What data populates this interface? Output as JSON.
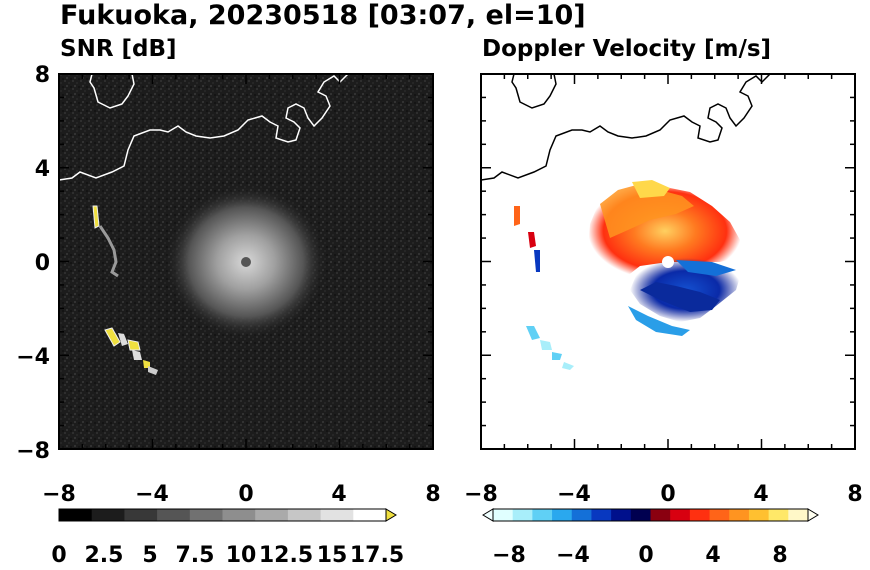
{
  "figure": {
    "title": "Fukuoka, 20230518 [03:07, el=10]"
  },
  "chart_data": [
    {
      "type": "heatmap",
      "title": "SNR [dB]",
      "xlabel": "",
      "ylabel": "",
      "xlim": [
        -8,
        8
      ],
      "ylim": [
        -8,
        8
      ],
      "xticks": [
        "−8",
        "−4",
        "0",
        "4",
        "8"
      ],
      "yticks": [
        "8",
        "4",
        "0",
        "−4",
        "−8"
      ],
      "colorbar": {
        "min": 0,
        "max": 18,
        "extend": "max",
        "labels": [
          "0",
          "2.5",
          "5",
          "7.5",
          "10",
          "12.5",
          "15",
          "17.5"
        ],
        "colors": [
          "#000000",
          "#1c1c1c",
          "#383838",
          "#555555",
          "#717171",
          "#8e8e8e",
          "#aaaaaa",
          "#c6c6c6",
          "#e2e2e2",
          "#ffffff"
        ],
        "extend_color": "#f0e040"
      },
      "background": "#1a1a1a"
    },
    {
      "type": "heatmap",
      "title": "Doppler Velocity [m/s]",
      "xlabel": "",
      "ylabel": "",
      "xlim": [
        -8,
        8
      ],
      "ylim": [
        -8,
        8
      ],
      "xticks": [
        "−8",
        "−4",
        "0",
        "4",
        "8"
      ],
      "yticks": [],
      "colorbar": {
        "min": -10,
        "max": 10,
        "extend": "both",
        "labels": [
          "−8",
          "−4",
          "0",
          "4",
          "8"
        ],
        "colors": [
          "#e0ffff",
          "#a8eefa",
          "#60d0f5",
          "#2aa8ee",
          "#1470d8",
          "#0838c0",
          "#00108c",
          "#000050",
          "#8a0010",
          "#d80010",
          "#ff3010",
          "#ff6418",
          "#ff9420",
          "#ffc030",
          "#ffe868",
          "#fff8c8"
        ],
        "extend_low": "#f0ffff",
        "extend_high": "#fffff0"
      },
      "background": "#ffffff"
    }
  ]
}
